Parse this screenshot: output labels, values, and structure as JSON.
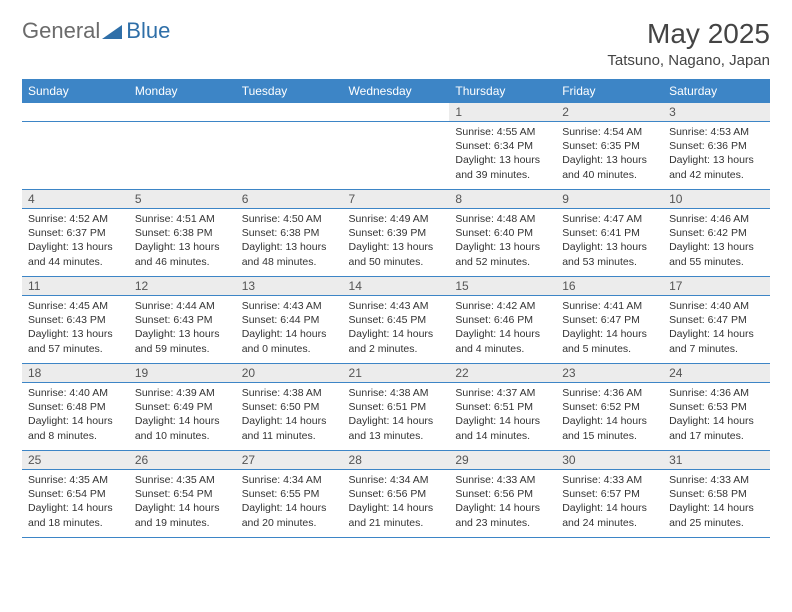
{
  "logo": {
    "part1": "General",
    "part2": "Blue"
  },
  "title": "May 2025",
  "location": "Tatsuno, Nagano, Japan",
  "colors": {
    "header_bg": "#3d85c6",
    "header_text": "#ffffff",
    "daynum_bg": "#ececec",
    "rule": "#3d85c6",
    "logo_blue": "#2f6fa8",
    "logo_gray": "#6b6b6b"
  },
  "weekdays": [
    "Sunday",
    "Monday",
    "Tuesday",
    "Wednesday",
    "Thursday",
    "Friday",
    "Saturday"
  ],
  "weeks": [
    [
      {
        "n": "",
        "sunrise": "",
        "sunset": "",
        "daylight": ""
      },
      {
        "n": "",
        "sunrise": "",
        "sunset": "",
        "daylight": ""
      },
      {
        "n": "",
        "sunrise": "",
        "sunset": "",
        "daylight": ""
      },
      {
        "n": "",
        "sunrise": "",
        "sunset": "",
        "daylight": ""
      },
      {
        "n": "1",
        "sunrise": "Sunrise: 4:55 AM",
        "sunset": "Sunset: 6:34 PM",
        "daylight": "Daylight: 13 hours and 39 minutes."
      },
      {
        "n": "2",
        "sunrise": "Sunrise: 4:54 AM",
        "sunset": "Sunset: 6:35 PM",
        "daylight": "Daylight: 13 hours and 40 minutes."
      },
      {
        "n": "3",
        "sunrise": "Sunrise: 4:53 AM",
        "sunset": "Sunset: 6:36 PM",
        "daylight": "Daylight: 13 hours and 42 minutes."
      }
    ],
    [
      {
        "n": "4",
        "sunrise": "Sunrise: 4:52 AM",
        "sunset": "Sunset: 6:37 PM",
        "daylight": "Daylight: 13 hours and 44 minutes."
      },
      {
        "n": "5",
        "sunrise": "Sunrise: 4:51 AM",
        "sunset": "Sunset: 6:38 PM",
        "daylight": "Daylight: 13 hours and 46 minutes."
      },
      {
        "n": "6",
        "sunrise": "Sunrise: 4:50 AM",
        "sunset": "Sunset: 6:38 PM",
        "daylight": "Daylight: 13 hours and 48 minutes."
      },
      {
        "n": "7",
        "sunrise": "Sunrise: 4:49 AM",
        "sunset": "Sunset: 6:39 PM",
        "daylight": "Daylight: 13 hours and 50 minutes."
      },
      {
        "n": "8",
        "sunrise": "Sunrise: 4:48 AM",
        "sunset": "Sunset: 6:40 PM",
        "daylight": "Daylight: 13 hours and 52 minutes."
      },
      {
        "n": "9",
        "sunrise": "Sunrise: 4:47 AM",
        "sunset": "Sunset: 6:41 PM",
        "daylight": "Daylight: 13 hours and 53 minutes."
      },
      {
        "n": "10",
        "sunrise": "Sunrise: 4:46 AM",
        "sunset": "Sunset: 6:42 PM",
        "daylight": "Daylight: 13 hours and 55 minutes."
      }
    ],
    [
      {
        "n": "11",
        "sunrise": "Sunrise: 4:45 AM",
        "sunset": "Sunset: 6:43 PM",
        "daylight": "Daylight: 13 hours and 57 minutes."
      },
      {
        "n": "12",
        "sunrise": "Sunrise: 4:44 AM",
        "sunset": "Sunset: 6:43 PM",
        "daylight": "Daylight: 13 hours and 59 minutes."
      },
      {
        "n": "13",
        "sunrise": "Sunrise: 4:43 AM",
        "sunset": "Sunset: 6:44 PM",
        "daylight": "Daylight: 14 hours and 0 minutes."
      },
      {
        "n": "14",
        "sunrise": "Sunrise: 4:43 AM",
        "sunset": "Sunset: 6:45 PM",
        "daylight": "Daylight: 14 hours and 2 minutes."
      },
      {
        "n": "15",
        "sunrise": "Sunrise: 4:42 AM",
        "sunset": "Sunset: 6:46 PM",
        "daylight": "Daylight: 14 hours and 4 minutes."
      },
      {
        "n": "16",
        "sunrise": "Sunrise: 4:41 AM",
        "sunset": "Sunset: 6:47 PM",
        "daylight": "Daylight: 14 hours and 5 minutes."
      },
      {
        "n": "17",
        "sunrise": "Sunrise: 4:40 AM",
        "sunset": "Sunset: 6:47 PM",
        "daylight": "Daylight: 14 hours and 7 minutes."
      }
    ],
    [
      {
        "n": "18",
        "sunrise": "Sunrise: 4:40 AM",
        "sunset": "Sunset: 6:48 PM",
        "daylight": "Daylight: 14 hours and 8 minutes."
      },
      {
        "n": "19",
        "sunrise": "Sunrise: 4:39 AM",
        "sunset": "Sunset: 6:49 PM",
        "daylight": "Daylight: 14 hours and 10 minutes."
      },
      {
        "n": "20",
        "sunrise": "Sunrise: 4:38 AM",
        "sunset": "Sunset: 6:50 PM",
        "daylight": "Daylight: 14 hours and 11 minutes."
      },
      {
        "n": "21",
        "sunrise": "Sunrise: 4:38 AM",
        "sunset": "Sunset: 6:51 PM",
        "daylight": "Daylight: 14 hours and 13 minutes."
      },
      {
        "n": "22",
        "sunrise": "Sunrise: 4:37 AM",
        "sunset": "Sunset: 6:51 PM",
        "daylight": "Daylight: 14 hours and 14 minutes."
      },
      {
        "n": "23",
        "sunrise": "Sunrise: 4:36 AM",
        "sunset": "Sunset: 6:52 PM",
        "daylight": "Daylight: 14 hours and 15 minutes."
      },
      {
        "n": "24",
        "sunrise": "Sunrise: 4:36 AM",
        "sunset": "Sunset: 6:53 PM",
        "daylight": "Daylight: 14 hours and 17 minutes."
      }
    ],
    [
      {
        "n": "25",
        "sunrise": "Sunrise: 4:35 AM",
        "sunset": "Sunset: 6:54 PM",
        "daylight": "Daylight: 14 hours and 18 minutes."
      },
      {
        "n": "26",
        "sunrise": "Sunrise: 4:35 AM",
        "sunset": "Sunset: 6:54 PM",
        "daylight": "Daylight: 14 hours and 19 minutes."
      },
      {
        "n": "27",
        "sunrise": "Sunrise: 4:34 AM",
        "sunset": "Sunset: 6:55 PM",
        "daylight": "Daylight: 14 hours and 20 minutes."
      },
      {
        "n": "28",
        "sunrise": "Sunrise: 4:34 AM",
        "sunset": "Sunset: 6:56 PM",
        "daylight": "Daylight: 14 hours and 21 minutes."
      },
      {
        "n": "29",
        "sunrise": "Sunrise: 4:33 AM",
        "sunset": "Sunset: 6:56 PM",
        "daylight": "Daylight: 14 hours and 23 minutes."
      },
      {
        "n": "30",
        "sunrise": "Sunrise: 4:33 AM",
        "sunset": "Sunset: 6:57 PM",
        "daylight": "Daylight: 14 hours and 24 minutes."
      },
      {
        "n": "31",
        "sunrise": "Sunrise: 4:33 AM",
        "sunset": "Sunset: 6:58 PM",
        "daylight": "Daylight: 14 hours and 25 minutes."
      }
    ]
  ]
}
